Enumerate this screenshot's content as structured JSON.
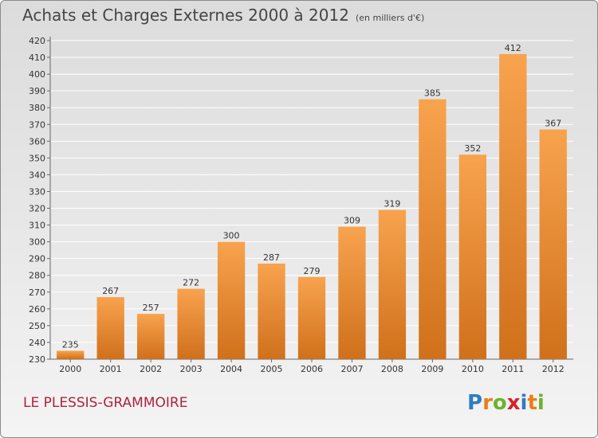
{
  "header": {
    "title": "Achats et Charges Externes 2000 à 2012",
    "unit": "(en milliers d'€)"
  },
  "footer": {
    "commune": "LE PLESSIS-GRAMMOIRE",
    "logo": [
      "P",
      "r",
      "o",
      "x",
      "i",
      "t",
      "i"
    ],
    "logo_colors": [
      "#2e7ebd",
      "#e8801a",
      "#6ab42d",
      "#d6232a",
      "#2e7ebd",
      "#e8801a",
      "#6ab42d"
    ]
  },
  "chart_data": {
    "type": "bar",
    "title": "Achats et Charges Externes 2000 à 2012",
    "categories": [
      "2000",
      "2001",
      "2002",
      "2003",
      "2004",
      "2005",
      "2006",
      "2007",
      "2008",
      "2009",
      "2010",
      "2011",
      "2012"
    ],
    "values": [
      235,
      267,
      257,
      272,
      300,
      287,
      279,
      309,
      319,
      385,
      352,
      412,
      367
    ],
    "ylim": [
      230,
      420
    ],
    "yticks": [
      230,
      240,
      250,
      260,
      270,
      280,
      290,
      300,
      310,
      320,
      330,
      340,
      350,
      360,
      370,
      380,
      390,
      400,
      410,
      420
    ],
    "grid": true,
    "bar_color_top": "#f8a34e",
    "bar_color_bottom": "#d0701b",
    "grid_color": "#ffffff"
  }
}
